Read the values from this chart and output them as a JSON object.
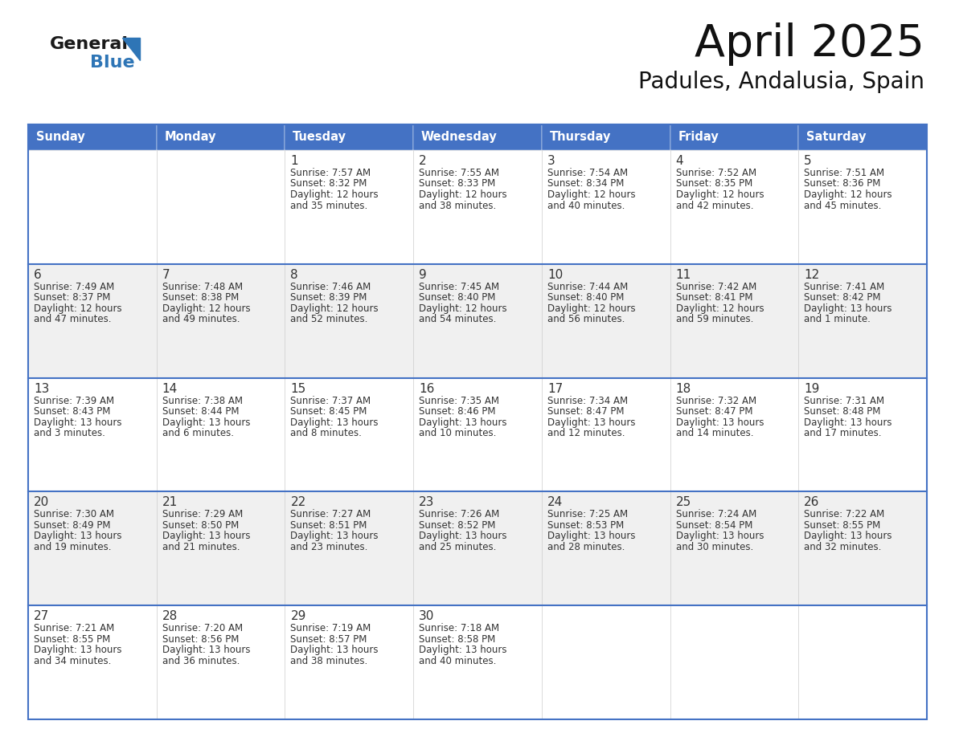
{
  "title": "April 2025",
  "subtitle": "Padules, Andalusia, Spain",
  "days_of_week": [
    "Sunday",
    "Monday",
    "Tuesday",
    "Wednesday",
    "Thursday",
    "Friday",
    "Saturday"
  ],
  "header_bg": "#4472C4",
  "header_text_color": "#FFFFFF",
  "cell_bg_odd": "#FFFFFF",
  "cell_bg_even": "#F0F0F0",
  "border_color": "#4472C4",
  "row_border_color": "#4472C4",
  "text_color": "#333333",
  "title_color": "#111111",
  "subtitle_color": "#111111",
  "logo_general_color": "#1a1a1a",
  "logo_blue_color": "#2E75B6",
  "calendar": [
    [
      {
        "day": "",
        "sunrise": "",
        "sunset": "",
        "daylight_l1": "",
        "daylight_l2": ""
      },
      {
        "day": "",
        "sunrise": "",
        "sunset": "",
        "daylight_l1": "",
        "daylight_l2": ""
      },
      {
        "day": "1",
        "sunrise": "7:57 AM",
        "sunset": "8:32 PM",
        "daylight_l1": "Daylight: 12 hours",
        "daylight_l2": "and 35 minutes."
      },
      {
        "day": "2",
        "sunrise": "7:55 AM",
        "sunset": "8:33 PM",
        "daylight_l1": "Daylight: 12 hours",
        "daylight_l2": "and 38 minutes."
      },
      {
        "day": "3",
        "sunrise": "7:54 AM",
        "sunset": "8:34 PM",
        "daylight_l1": "Daylight: 12 hours",
        "daylight_l2": "and 40 minutes."
      },
      {
        "day": "4",
        "sunrise": "7:52 AM",
        "sunset": "8:35 PM",
        "daylight_l1": "Daylight: 12 hours",
        "daylight_l2": "and 42 minutes."
      },
      {
        "day": "5",
        "sunrise": "7:51 AM",
        "sunset": "8:36 PM",
        "daylight_l1": "Daylight: 12 hours",
        "daylight_l2": "and 45 minutes."
      }
    ],
    [
      {
        "day": "6",
        "sunrise": "7:49 AM",
        "sunset": "8:37 PM",
        "daylight_l1": "Daylight: 12 hours",
        "daylight_l2": "and 47 minutes."
      },
      {
        "day": "7",
        "sunrise": "7:48 AM",
        "sunset": "8:38 PM",
        "daylight_l1": "Daylight: 12 hours",
        "daylight_l2": "and 49 minutes."
      },
      {
        "day": "8",
        "sunrise": "7:46 AM",
        "sunset": "8:39 PM",
        "daylight_l1": "Daylight: 12 hours",
        "daylight_l2": "and 52 minutes."
      },
      {
        "day": "9",
        "sunrise": "7:45 AM",
        "sunset": "8:40 PM",
        "daylight_l1": "Daylight: 12 hours",
        "daylight_l2": "and 54 minutes."
      },
      {
        "day": "10",
        "sunrise": "7:44 AM",
        "sunset": "8:40 PM",
        "daylight_l1": "Daylight: 12 hours",
        "daylight_l2": "and 56 minutes."
      },
      {
        "day": "11",
        "sunrise": "7:42 AM",
        "sunset": "8:41 PM",
        "daylight_l1": "Daylight: 12 hours",
        "daylight_l2": "and 59 minutes."
      },
      {
        "day": "12",
        "sunrise": "7:41 AM",
        "sunset": "8:42 PM",
        "daylight_l1": "Daylight: 13 hours",
        "daylight_l2": "and 1 minute."
      }
    ],
    [
      {
        "day": "13",
        "sunrise": "7:39 AM",
        "sunset": "8:43 PM",
        "daylight_l1": "Daylight: 13 hours",
        "daylight_l2": "and 3 minutes."
      },
      {
        "day": "14",
        "sunrise": "7:38 AM",
        "sunset": "8:44 PM",
        "daylight_l1": "Daylight: 13 hours",
        "daylight_l2": "and 6 minutes."
      },
      {
        "day": "15",
        "sunrise": "7:37 AM",
        "sunset": "8:45 PM",
        "daylight_l1": "Daylight: 13 hours",
        "daylight_l2": "and 8 minutes."
      },
      {
        "day": "16",
        "sunrise": "7:35 AM",
        "sunset": "8:46 PM",
        "daylight_l1": "Daylight: 13 hours",
        "daylight_l2": "and 10 minutes."
      },
      {
        "day": "17",
        "sunrise": "7:34 AM",
        "sunset": "8:47 PM",
        "daylight_l1": "Daylight: 13 hours",
        "daylight_l2": "and 12 minutes."
      },
      {
        "day": "18",
        "sunrise": "7:32 AM",
        "sunset": "8:47 PM",
        "daylight_l1": "Daylight: 13 hours",
        "daylight_l2": "and 14 minutes."
      },
      {
        "day": "19",
        "sunrise": "7:31 AM",
        "sunset": "8:48 PM",
        "daylight_l1": "Daylight: 13 hours",
        "daylight_l2": "and 17 minutes."
      }
    ],
    [
      {
        "day": "20",
        "sunrise": "7:30 AM",
        "sunset": "8:49 PM",
        "daylight_l1": "Daylight: 13 hours",
        "daylight_l2": "and 19 minutes."
      },
      {
        "day": "21",
        "sunrise": "7:29 AM",
        "sunset": "8:50 PM",
        "daylight_l1": "Daylight: 13 hours",
        "daylight_l2": "and 21 minutes."
      },
      {
        "day": "22",
        "sunrise": "7:27 AM",
        "sunset": "8:51 PM",
        "daylight_l1": "Daylight: 13 hours",
        "daylight_l2": "and 23 minutes."
      },
      {
        "day": "23",
        "sunrise": "7:26 AM",
        "sunset": "8:52 PM",
        "daylight_l1": "Daylight: 13 hours",
        "daylight_l2": "and 25 minutes."
      },
      {
        "day": "24",
        "sunrise": "7:25 AM",
        "sunset": "8:53 PM",
        "daylight_l1": "Daylight: 13 hours",
        "daylight_l2": "and 28 minutes."
      },
      {
        "day": "25",
        "sunrise": "7:24 AM",
        "sunset": "8:54 PM",
        "daylight_l1": "Daylight: 13 hours",
        "daylight_l2": "and 30 minutes."
      },
      {
        "day": "26",
        "sunrise": "7:22 AM",
        "sunset": "8:55 PM",
        "daylight_l1": "Daylight: 13 hours",
        "daylight_l2": "and 32 minutes."
      }
    ],
    [
      {
        "day": "27",
        "sunrise": "7:21 AM",
        "sunset": "8:55 PM",
        "daylight_l1": "Daylight: 13 hours",
        "daylight_l2": "and 34 minutes."
      },
      {
        "day": "28",
        "sunrise": "7:20 AM",
        "sunset": "8:56 PM",
        "daylight_l1": "Daylight: 13 hours",
        "daylight_l2": "and 36 minutes."
      },
      {
        "day": "29",
        "sunrise": "7:19 AM",
        "sunset": "8:57 PM",
        "daylight_l1": "Daylight: 13 hours",
        "daylight_l2": "and 38 minutes."
      },
      {
        "day": "30",
        "sunrise": "7:18 AM",
        "sunset": "8:58 PM",
        "daylight_l1": "Daylight: 13 hours",
        "daylight_l2": "and 40 minutes."
      },
      {
        "day": "",
        "sunrise": "",
        "sunset": "",
        "daylight_l1": "",
        "daylight_l2": ""
      },
      {
        "day": "",
        "sunrise": "",
        "sunset": "",
        "daylight_l1": "",
        "daylight_l2": ""
      },
      {
        "day": "",
        "sunrise": "",
        "sunset": "",
        "daylight_l1": "",
        "daylight_l2": ""
      }
    ]
  ]
}
